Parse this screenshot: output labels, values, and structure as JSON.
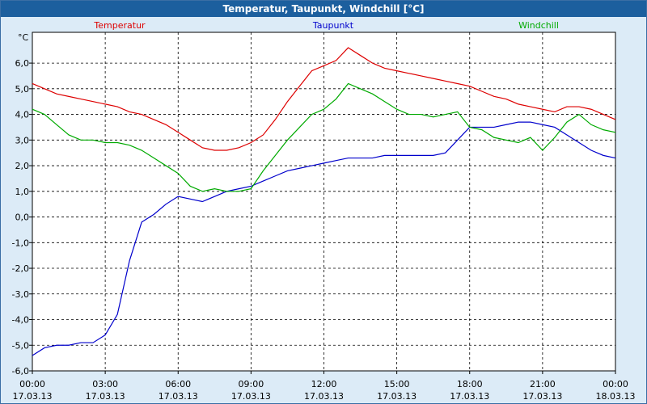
{
  "window": {
    "title": "Temperatur, Taupunkt, Windchill [°C]"
  },
  "colors": {
    "background": "#dcebf7",
    "titlebar": "#1c5f9e",
    "plot_bg": "#ffffff",
    "temperatur": "#dd0000",
    "taupunkt": "#0000cc",
    "windchill": "#00aa00"
  },
  "chart_data": {
    "type": "line",
    "title": "Temperatur, Taupunkt, Windchill [°C]",
    "ylabel": "°C",
    "xlabel": "",
    "ylim": [
      -6,
      7.2
    ],
    "xlim_hours": [
      0,
      24
    ],
    "grid": true,
    "legend_placement": "top",
    "y_ticks": [
      "-6,0",
      "-5,0",
      "-4,0",
      "-3,0",
      "-2,0",
      "-1,0",
      "0,0",
      "1,0",
      "2,0",
      "3,0",
      "4,0",
      "5,0",
      "6,0"
    ],
    "x_ticks": [
      {
        "time": "00:00",
        "date": "17.03.13"
      },
      {
        "time": "03:00",
        "date": "17.03.13"
      },
      {
        "time": "06:00",
        "date": "17.03.13"
      },
      {
        "time": "09:00",
        "date": "17.03.13"
      },
      {
        "time": "12:00",
        "date": "17.03.13"
      },
      {
        "time": "15:00",
        "date": "17.03.13"
      },
      {
        "time": "18:00",
        "date": "17.03.13"
      },
      {
        "time": "21:00",
        "date": "17.03.13"
      },
      {
        "time": "00:00",
        "date": "18.03.13"
      }
    ],
    "x_hours": [
      0,
      0.5,
      1,
      1.5,
      2,
      2.5,
      3,
      3.5,
      4,
      4.5,
      5,
      5.5,
      6,
      6.5,
      7,
      7.5,
      8,
      8.5,
      9,
      9.5,
      10,
      10.5,
      11,
      11.5,
      12,
      12.5,
      13,
      13.5,
      14,
      14.5,
      15,
      15.5,
      16,
      16.5,
      17,
      17.5,
      18,
      18.5,
      19,
      19.5,
      20,
      20.5,
      21,
      21.5,
      22,
      22.5,
      23,
      23.5,
      24
    ],
    "series": [
      {
        "name": "Temperatur",
        "color": "#dd0000",
        "values": [
          5.2,
          5.0,
          4.8,
          4.7,
          4.6,
          4.5,
          4.4,
          4.3,
          4.1,
          4.0,
          3.8,
          3.6,
          3.3,
          3.0,
          2.7,
          2.6,
          2.6,
          2.7,
          2.9,
          3.2,
          3.8,
          4.5,
          5.1,
          5.7,
          5.9,
          6.1,
          6.6,
          6.3,
          6.0,
          5.8,
          5.7,
          5.6,
          5.5,
          5.4,
          5.3,
          5.2,
          5.1,
          4.9,
          4.7,
          4.6,
          4.4,
          4.3,
          4.2,
          4.1,
          4.3,
          4.3,
          4.2,
          4.0,
          3.8
        ]
      },
      {
        "name": "Taupunkt",
        "color": "#0000cc",
        "values": [
          -5.4,
          -5.1,
          -5.0,
          -5.0,
          -4.9,
          -4.9,
          -4.6,
          -3.8,
          -1.7,
          -0.2,
          0.1,
          0.5,
          0.8,
          0.7,
          0.6,
          0.8,
          1.0,
          1.1,
          1.2,
          1.4,
          1.6,
          1.8,
          1.9,
          2.0,
          2.1,
          2.2,
          2.3,
          2.3,
          2.3,
          2.4,
          2.4,
          2.4,
          2.4,
          2.4,
          2.5,
          3.0,
          3.5,
          3.5,
          3.5,
          3.6,
          3.7,
          3.7,
          3.6,
          3.5,
          3.2,
          2.9,
          2.6,
          2.4,
          2.3
        ]
      },
      {
        "name": "Windchill",
        "color": "#00aa00",
        "values": [
          4.2,
          4.0,
          3.6,
          3.2,
          3.0,
          3.0,
          2.9,
          2.9,
          2.8,
          2.6,
          2.3,
          2.0,
          1.7,
          1.2,
          1.0,
          1.1,
          1.0,
          1.0,
          1.1,
          1.8,
          2.4,
          3.0,
          3.5,
          4.0,
          4.2,
          4.6,
          5.2,
          5.0,
          4.8,
          4.5,
          4.2,
          4.0,
          4.0,
          3.9,
          4.0,
          4.1,
          3.5,
          3.4,
          3.1,
          3.0,
          2.9,
          3.1,
          2.6,
          3.1,
          3.7,
          4.0,
          3.6,
          3.4,
          3.3
        ]
      }
    ]
  }
}
